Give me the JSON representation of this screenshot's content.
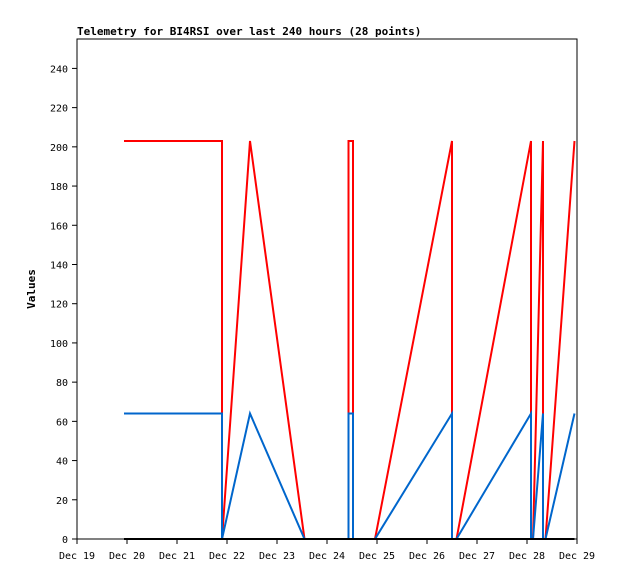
{
  "chart_data": {
    "type": "line",
    "title": "Telemetry for BI4RSI over last 240 hours (28 points)",
    "xlabel": "",
    "ylabel": "Values",
    "ylim": [
      0,
      255
    ],
    "y_ticks": [
      0,
      20,
      40,
      60,
      80,
      100,
      120,
      140,
      160,
      180,
      200,
      220,
      240
    ],
    "x_ticks": [
      "Dec 19",
      "Dec 20",
      "Dec 21",
      "Dec 22",
      "Dec 23",
      "Dec 24",
      "Dec 25",
      "Dec 26",
      "Dec 27",
      "Dec 28",
      "Dec 29"
    ],
    "xlim": [
      0,
      10
    ],
    "grid": false,
    "series": [
      {
        "color": "#ff0000",
        "x": [
          0.94,
          2.9,
          2.9,
          3.46,
          4.55,
          5.43,
          5.43,
          5.43,
          5.52,
          5.52,
          5.96,
          7.5,
          7.5,
          7.59,
          9.08,
          9.08,
          9.12,
          9.32,
          9.32,
          9.37,
          9.95
        ],
        "y": [
          203,
          203,
          0,
          203,
          0,
          0,
          102,
          203,
          203,
          0,
          0,
          203,
          0,
          0,
          203,
          0,
          0,
          203,
          0,
          0,
          203
        ]
      },
      {
        "color": "#0066cc",
        "x": [
          0.94,
          2.9,
          2.9,
          3.46,
          4.55,
          5.43,
          5.43,
          5.43,
          5.52,
          5.52,
          5.96,
          7.5,
          7.5,
          7.59,
          9.08,
          9.08,
          9.12,
          9.32,
          9.32,
          9.37,
          9.95
        ],
        "y": [
          64,
          64,
          0,
          64,
          0,
          0,
          32,
          64,
          64,
          0,
          0,
          64,
          0,
          0,
          64,
          0,
          0,
          64,
          0,
          0,
          64
        ]
      },
      {
        "color": "#000000",
        "x": [
          0.94,
          9.95
        ],
        "y": [
          0,
          0
        ]
      }
    ]
  }
}
